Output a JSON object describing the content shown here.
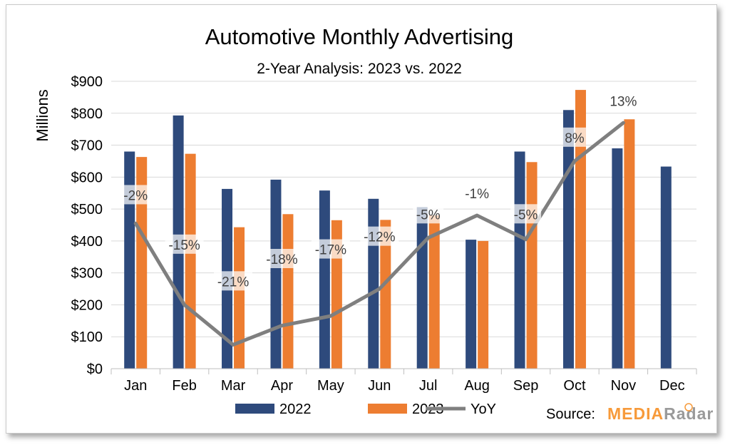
{
  "chart_data": {
    "type": "bar",
    "title": "Automotive Monthly Advertising",
    "subtitle": "2-Year Analysis: 2023 vs. 2022",
    "ylabel": "Millions",
    "ylim": [
      0,
      900
    ],
    "yticks": [
      "$0",
      "$100",
      "$200",
      "$300",
      "$400",
      "$500",
      "$600",
      "$700",
      "$800",
      "$900"
    ],
    "categories": [
      "Jan",
      "Feb",
      "Mar",
      "Apr",
      "May",
      "Jun",
      "Jul",
      "Aug",
      "Sep",
      "Oct",
      "Nov",
      "Dec"
    ],
    "series": [
      {
        "name": "2022",
        "color": "#2e4a7c",
        "values": [
          680,
          793,
          563,
          592,
          558,
          532,
          506,
          404,
          680,
          810,
          690,
          633
        ]
      },
      {
        "name": "2023",
        "color": "#ed7d31",
        "values": [
          663,
          673,
          443,
          484,
          465,
          466,
          480,
          400,
          647,
          873,
          781,
          null
        ]
      }
    ],
    "yoy": {
      "name": "YoY",
      "color": "#7f7f7f",
      "labels": [
        "-2%",
        "-15%",
        "-21%",
        "-18%",
        "-17%",
        "-12%",
        "-5%",
        "-1%",
        "-5%",
        "8%",
        "13%",
        null
      ],
      "line_y": [
        455,
        200,
        75,
        135,
        165,
        250,
        410,
        480,
        405,
        650,
        770,
        null
      ]
    },
    "grid": true,
    "legend_position": "bottom"
  },
  "source": {
    "label": "Source:",
    "brand_part1": "MEDIA",
    "brand_part2": "Radar"
  }
}
